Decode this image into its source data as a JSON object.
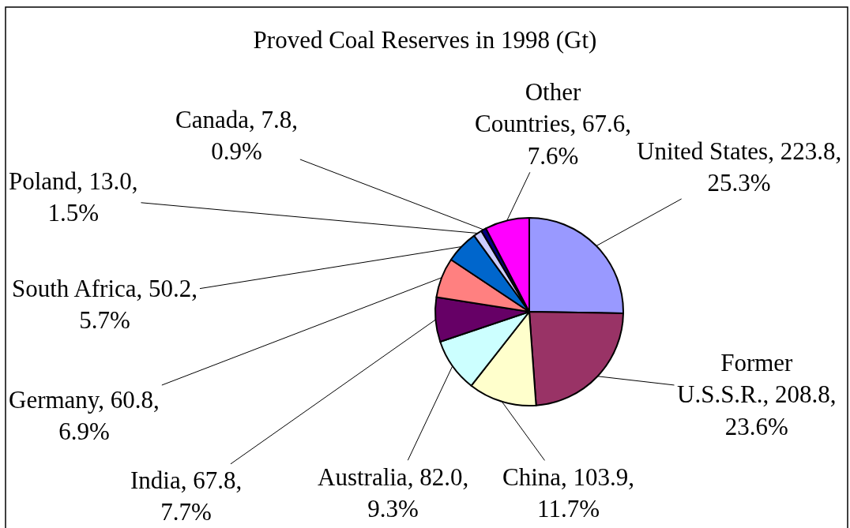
{
  "chart_data": {
    "type": "pie",
    "title": "Proved Coal Reserves in 1998 (Gt)",
    "categories": [
      "United States",
      "Former U.S.S.R.",
      "China",
      "Australia",
      "India",
      "Germany",
      "South Africa",
      "Poland",
      "Canada",
      "Other Countries"
    ],
    "values": [
      223.8,
      208.8,
      103.9,
      82.0,
      67.8,
      60.8,
      50.2,
      13.0,
      7.8,
      67.6
    ],
    "value_labels": [
      "223.8, 25.3%",
      "208.8, 23.6%",
      "103.9, 11.7%",
      "82.0, 9.3%",
      "67.8, 7.7%",
      "60.8, 6.9%",
      "50.2, 5.7%",
      "13.0, 1.5%",
      "7.8, 0.9%",
      "67.6, 7.6%"
    ],
    "colors": [
      "#9999ff",
      "#993366",
      "#ffffcc",
      "#ccffff",
      "#660066",
      "#ff8080",
      "#0066cc",
      "#ccccff",
      "#000080",
      "#ff00ff"
    ]
  }
}
